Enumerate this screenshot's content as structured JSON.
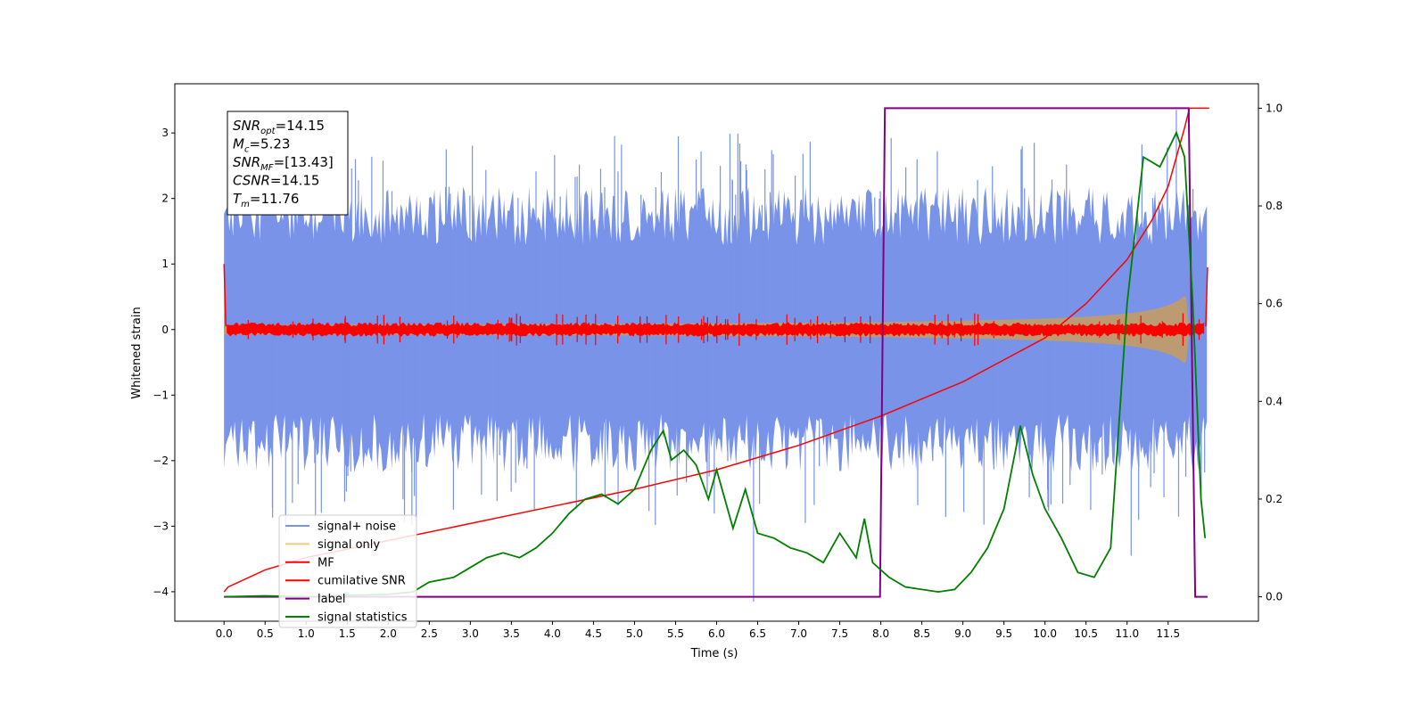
{
  "chart_data": {
    "type": "line",
    "xlabel": "Time (s)",
    "ylabel": "Whitened strain",
    "xlim": [
      -0.6,
      12.6
    ],
    "ylim": [
      -4.45,
      3.75
    ],
    "ylim_right": [
      -0.05,
      1.05
    ],
    "x_ticks": [
      0.0,
      0.5,
      1.0,
      1.5,
      2.0,
      2.5,
      3.0,
      3.5,
      4.0,
      4.5,
      5.0,
      5.5,
      6.0,
      6.5,
      7.0,
      7.5,
      8.0,
      8.5,
      9.0,
      9.5,
      10.0,
      10.5,
      11.0,
      11.5
    ],
    "x_tick_labels": [
      "0.0",
      "0.5",
      "1.0",
      "1.5",
      "2.0",
      "2.5",
      "3.0",
      "3.5",
      "4.0",
      "4.5",
      "5.0",
      "5.5",
      "6.0",
      "6.5",
      "7.0",
      "7.5",
      "8.0",
      "8.5",
      "9.0",
      "9.5",
      "10.0",
      "10.5",
      "11.0",
      "11.5"
    ],
    "y_ticks": [
      -4,
      -3,
      -2,
      -1,
      0,
      1,
      2,
      3
    ],
    "y_tick_labels": [
      "−4",
      "−3",
      "−2",
      "−1",
      "0",
      "1",
      "2",
      "3"
    ],
    "y_right_ticks": [
      0.0,
      0.2,
      0.4,
      0.6,
      0.8,
      1.0
    ],
    "y_right_tick_labels": [
      "0.0",
      "0.2",
      "0.4",
      "0.6",
      "0.8",
      "1.0"
    ],
    "legend_position": "lower-left",
    "grid": false,
    "annotation": {
      "lines": [
        {
          "sym": "SNR",
          "sub": "opt",
          "text": "=14.15"
        },
        {
          "sym": "M",
          "sub": "c",
          "text": "=5.23"
        },
        {
          "sym": "SNR",
          "sub": "MF",
          "text": "=[13.43]"
        },
        {
          "sym": "CSNR",
          "sub": "",
          "text": "=14.15"
        },
        {
          "sym": "T",
          "sub": "m",
          "text": "=11.76"
        }
      ]
    },
    "series": [
      {
        "name": "signal+ noise",
        "color": "#7893e8",
        "axis": "left",
        "kind": "noise",
        "t_range": [
          0.0,
          11.98
        ],
        "typical_range": [
          -1.6,
          1.6
        ],
        "extreme_range": [
          -4.15,
          3.35
        ]
      },
      {
        "name": "signal only",
        "color": "#f5c97a",
        "axis": "left",
        "kind": "chirp",
        "t_range": [
          0.0,
          11.76
        ],
        "amplitude_start": 0.02,
        "amplitude_peak": 0.6,
        "merger_time": 11.76
      },
      {
        "name": "MF",
        "color": "#ff0000",
        "axis": "left",
        "kind": "noise",
        "t_range": [
          0.0,
          11.98
        ],
        "typical_range": [
          -0.1,
          0.1
        ],
        "edge_value": 1.0
      },
      {
        "name": "cumilative SNR",
        "color": "#ff0000",
        "axis": "right",
        "x": [
          0.0,
          0.05,
          0.5,
          1.0,
          2.0,
          3.0,
          4.0,
          5.0,
          6.0,
          7.0,
          8.0,
          9.0,
          10.0,
          10.5,
          11.0,
          11.3,
          11.5,
          11.7,
          11.76,
          12.0
        ],
        "y": [
          0.01,
          0.02,
          0.055,
          0.08,
          0.115,
          0.15,
          0.185,
          0.22,
          0.26,
          0.31,
          0.37,
          0.44,
          0.53,
          0.6,
          0.69,
          0.77,
          0.84,
          0.96,
          1.0,
          1.0
        ]
      },
      {
        "name": "label",
        "color": "#800080",
        "axis": "right",
        "x": [
          0.0,
          7.99,
          8.05,
          11.75,
          11.83,
          11.98
        ],
        "y": [
          0.0,
          0.0,
          1.0,
          1.0,
          0.0,
          0.0
        ]
      },
      {
        "name": "signal statistics",
        "color": "#008000",
        "axis": "right",
        "x": [
          0.0,
          0.5,
          1.0,
          1.5,
          2.0,
          2.3,
          2.5,
          2.8,
          3.0,
          3.2,
          3.4,
          3.6,
          3.8,
          4.0,
          4.2,
          4.4,
          4.6,
          4.8,
          5.0,
          5.2,
          5.35,
          5.45,
          5.6,
          5.75,
          5.9,
          6.0,
          6.2,
          6.35,
          6.5,
          6.7,
          6.9,
          7.1,
          7.3,
          7.5,
          7.7,
          7.8,
          7.9,
          8.1,
          8.3,
          8.5,
          8.7,
          8.9,
          9.1,
          9.3,
          9.5,
          9.7,
          9.85,
          10.0,
          10.2,
          10.4,
          10.6,
          10.8,
          11.0,
          11.2,
          11.4,
          11.6,
          11.7,
          11.8,
          11.9,
          11.95
        ],
        "y": [
          0.0,
          0.002,
          0.0,
          0.003,
          0.005,
          0.01,
          0.03,
          0.04,
          0.06,
          0.08,
          0.09,
          0.08,
          0.1,
          0.13,
          0.17,
          0.2,
          0.21,
          0.19,
          0.22,
          0.3,
          0.34,
          0.28,
          0.3,
          0.27,
          0.2,
          0.26,
          0.14,
          0.22,
          0.13,
          0.12,
          0.1,
          0.09,
          0.07,
          0.13,
          0.08,
          0.16,
          0.07,
          0.04,
          0.02,
          0.015,
          0.01,
          0.015,
          0.05,
          0.1,
          0.18,
          0.35,
          0.25,
          0.18,
          0.12,
          0.05,
          0.04,
          0.1,
          0.6,
          0.9,
          0.88,
          0.95,
          0.9,
          0.6,
          0.2,
          0.12
        ]
      }
    ]
  }
}
